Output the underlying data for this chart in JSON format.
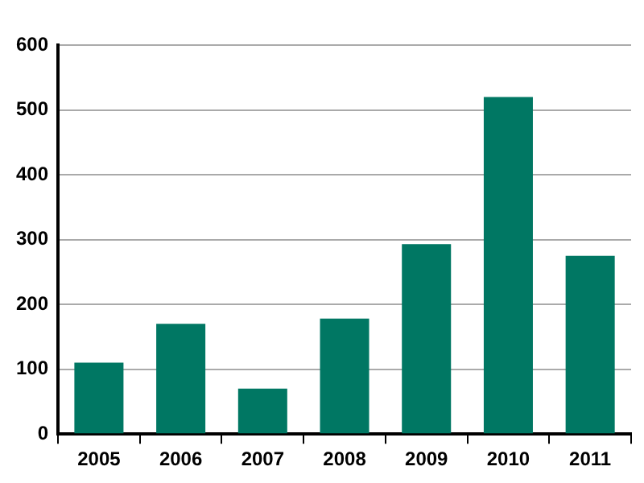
{
  "chart_data": {
    "type": "bar",
    "categories": [
      "2005",
      "2006",
      "2007",
      "2008",
      "2009",
      "2010",
      "2011"
    ],
    "values": [
      110,
      170,
      70,
      178,
      293,
      520,
      275
    ],
    "color": "#007763",
    "ylim": [
      0,
      600
    ],
    "yticks": [
      0,
      100,
      200,
      300,
      400,
      500,
      600
    ],
    "grid": "y",
    "legend": false
  }
}
